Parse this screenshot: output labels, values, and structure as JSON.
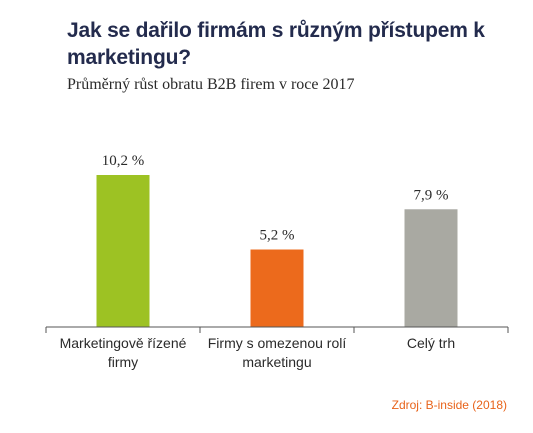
{
  "colors": {
    "title": "#232b4d",
    "text": "#2a2a2a",
    "axis": "#555555",
    "source": "#e8631a"
  },
  "chart_data": {
    "type": "bar",
    "title": "Jak se dařilo firmám s různým přístupem k marketingu?",
    "subtitle": "Průměrný růst obratu B2B firem v roce 2017",
    "categories": [
      "Marketingově řízené firmy",
      "Firmy s omezenou rolí marketingu",
      "Celý trh"
    ],
    "category_lines": [
      [
        "Marketingově řízené",
        "firmy"
      ],
      [
        "Firmy s omezenou rolí",
        "marketingu"
      ],
      [
        "Celý trh"
      ]
    ],
    "values": [
      10.2,
      5.2,
      7.9
    ],
    "value_labels": [
      "10,2 %",
      "5,2 %",
      "7,9 %"
    ],
    "bar_colors": [
      "#9dc223",
      "#ec6a1c",
      "#a9a9a2"
    ],
    "unit": "%",
    "ylim": [
      0,
      10.2
    ],
    "grid": false,
    "legend": "none",
    "source": "Zdroj: B-inside (2018)"
  }
}
